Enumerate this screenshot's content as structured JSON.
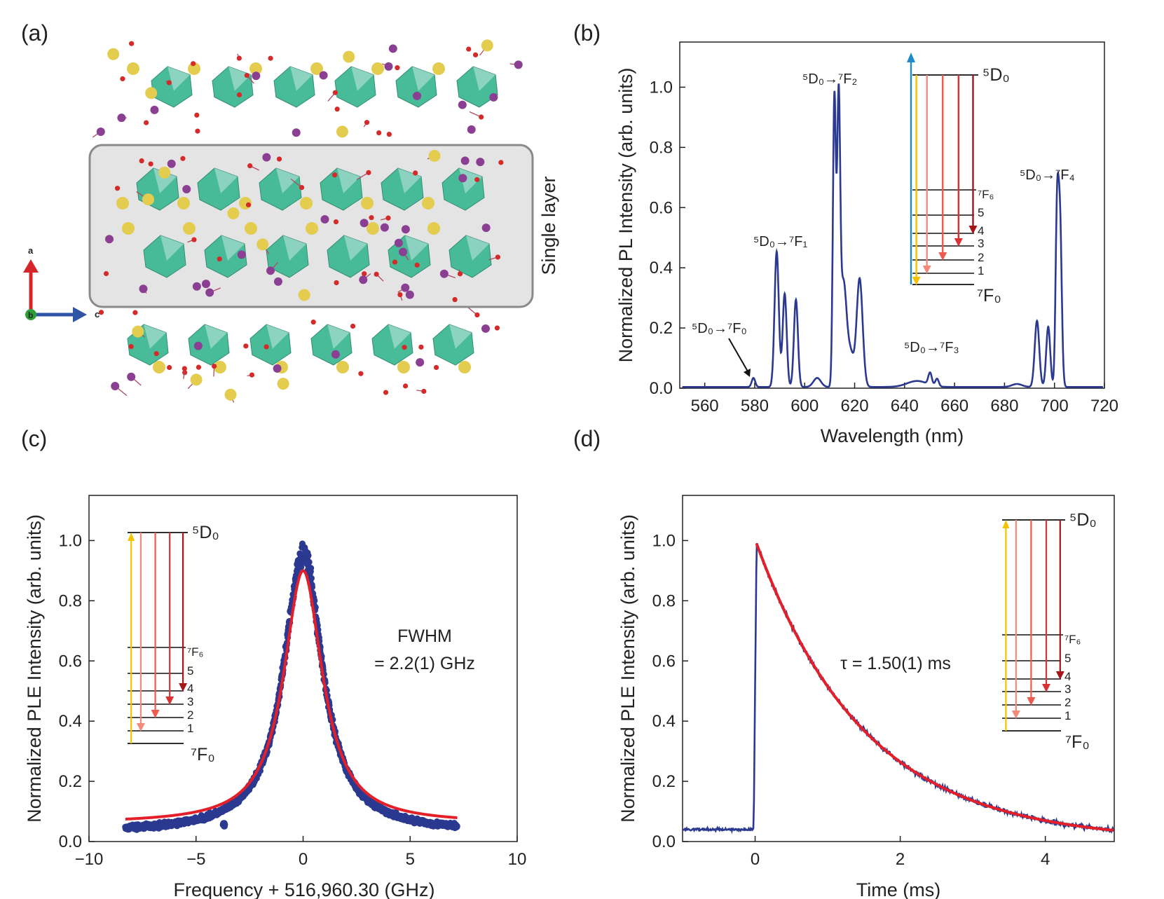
{
  "panel_labels": [
    "(a)",
    "(b)",
    "(c)",
    "(d)"
  ],
  "panel_a": {
    "single_layer_label": "Single layer",
    "axes_labels": {
      "a": "a",
      "b": "b",
      "c": "c"
    },
    "atom_colors": {
      "octahedra": "#3fb893",
      "yellow": "#e3cc4e",
      "purple": "#8b3f93",
      "red": "#d42a2a"
    }
  },
  "chart_data": [
    {
      "panel": "b",
      "type": "line",
      "xlabel": "Wavelength (nm)",
      "ylabel": "Normalized PL Intensity (arb. units)",
      "xlim": [
        550,
        720
      ],
      "ylim": [
        0,
        1.15
      ],
      "xticks": [
        "560",
        "580",
        "600",
        "620",
        "640",
        "660",
        "680",
        "700",
        "720"
      ],
      "yticks": [
        "0.0",
        "0.2",
        "0.4",
        "0.6",
        "0.8",
        "1.0"
      ],
      "line_color": "#2b3990",
      "peaks": [
        {
          "x": 579.5,
          "y": 0.03,
          "w": 0.7
        },
        {
          "x": 588.8,
          "y": 0.45,
          "w": 0.85
        },
        {
          "x": 592.0,
          "y": 0.31,
          "w": 0.8
        },
        {
          "x": 596.5,
          "y": 0.29,
          "w": 0.8
        },
        {
          "x": 605.0,
          "y": 0.03,
          "w": 1.5
        },
        {
          "x": 611.9,
          "y": 0.96,
          "w": 0.6
        },
        {
          "x": 613.6,
          "y": 0.87,
          "w": 0.6
        },
        {
          "x": 615.5,
          "y": 0.35,
          "w": 1.3
        },
        {
          "x": 618.5,
          "y": 0.1,
          "w": 1.2
        },
        {
          "x": 622.0,
          "y": 0.36,
          "w": 1.2
        },
        {
          "x": 645.0,
          "y": 0.02,
          "w": 4.0
        },
        {
          "x": 650.2,
          "y": 0.04,
          "w": 0.7
        },
        {
          "x": 653.0,
          "y": 0.025,
          "w": 0.7
        },
        {
          "x": 685.0,
          "y": 0.01,
          "w": 2.0
        },
        {
          "x": 693.0,
          "y": 0.22,
          "w": 0.9
        },
        {
          "x": 697.5,
          "y": 0.2,
          "w": 0.8
        },
        {
          "x": 701.0,
          "y": 0.53,
          "w": 0.6
        },
        {
          "x": 702.2,
          "y": 0.55,
          "w": 0.7
        }
      ],
      "baseline": 0.004,
      "annotations": [
        {
          "text": "⁵D₀→⁷F₀",
          "x": 578,
          "y": 0.19
        },
        {
          "text": "⁵D₀→⁷F₁",
          "x": 591,
          "y": 0.47
        },
        {
          "text": "⁵D₀→⁷F₂",
          "x": 613,
          "y": 1.03
        },
        {
          "text": "⁵D₀→⁷F₃",
          "x": 652,
          "y": 0.12
        },
        {
          "text": "⁵D₀→⁷F₄",
          "x": 695,
          "y": 0.67
        }
      ],
      "inset": {
        "top_level": "⁵D₀",
        "levels": [
          "⁷F₆",
          "5",
          "4",
          "3",
          "2",
          "1",
          "⁷F₀"
        ],
        "pump_color": "#1f8ac9",
        "emission_colors": [
          "#f5c400",
          "#f28a7a",
          "#ee5a4e",
          "#d83232",
          "#a3161a"
        ]
      }
    },
    {
      "panel": "c",
      "type": "scatter",
      "xlabel": "Frequency + 516,960.30 (GHz)",
      "ylabel": "Normalized PLE Intensity (arb. units)",
      "xlim": [
        -10,
        10
      ],
      "ylim": [
        0,
        1.15
      ],
      "xticks": [
        "−10",
        "−5",
        "0",
        "5",
        "10"
      ],
      "yticks": [
        "0.0",
        "0.2",
        "0.4",
        "0.6",
        "0.8",
        "1.0"
      ],
      "data_range": [
        -8.3,
        7.2
      ],
      "data_model": {
        "center": 0.0,
        "fwhm": 2.2,
        "amplitude": 0.93,
        "offset": 0.03
      },
      "fit": {
        "center": 0.0,
        "fwhm": 2.2,
        "amplitude": 0.84,
        "offset": 0.06,
        "color": "#e3202a"
      },
      "point_color": "#2b3990",
      "annotation_lines": [
        "FWHM",
        "= 2.2(1) GHz"
      ],
      "inset": {
        "top_level": "⁵D₀",
        "levels": [
          "⁷F₆",
          "5",
          "4",
          "3",
          "2",
          "1",
          "⁷F₀"
        ],
        "emission_colors": [
          "#f5c400",
          "#f28a7a",
          "#ee5a4e",
          "#d83232",
          "#a3161a"
        ]
      }
    },
    {
      "panel": "d",
      "type": "line",
      "xlabel": "Time (ms)",
      "ylabel": "Normalized PLE Intensity (arb. units)",
      "xlim": [
        -1,
        4.95
      ],
      "ylim": [
        0,
        1.15
      ],
      "xticks": [
        "0",
        "2",
        "4"
      ],
      "yticks": [
        "0.0",
        "0.2",
        "0.4",
        "0.6",
        "0.8",
        "1.0"
      ],
      "pre_pulse_level": 0.04,
      "decay": {
        "tau_ms": 1.5,
        "amplitude": 0.99,
        "offset": 0.0
      },
      "line_color": "#2b3990",
      "fit_color": "#e3202a",
      "annotation": "τ = 1.50(1) ms",
      "inset": {
        "top_level": "⁵D₀",
        "levels": [
          "⁷F₆",
          "5",
          "4",
          "3",
          "2",
          "1",
          "⁷F₀"
        ],
        "emission_colors": [
          "#f5c400",
          "#f28a7a",
          "#ee5a4e",
          "#d83232",
          "#a3161a"
        ]
      }
    }
  ]
}
